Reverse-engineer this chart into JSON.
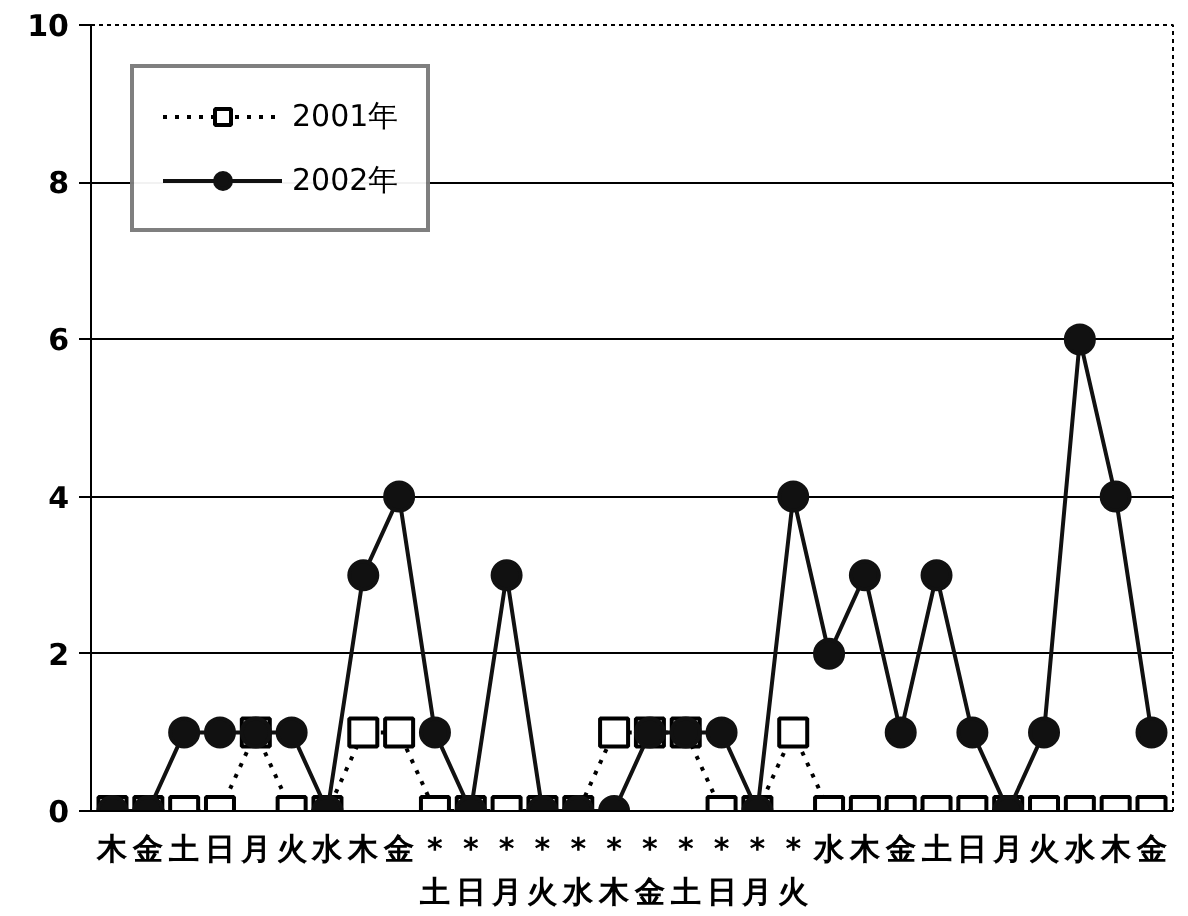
{
  "chart_data": {
    "type": "line",
    "categories": [
      "木",
      "金",
      "土",
      "日",
      "月",
      "火",
      "水",
      "木",
      "金",
      "*\n土",
      "*\n日",
      "*\n月",
      "*\n火",
      "*\n水",
      "*\n木",
      "*\n金",
      "*\n土",
      "*\n日",
      "*\n月",
      "*\n火",
      "水",
      "木",
      "金",
      "土",
      "日",
      "月",
      "火",
      "水",
      "木",
      "金"
    ],
    "series": [
      {
        "name": "2001年",
        "color": "#000000",
        "marker": "square",
        "line_style": "dotted",
        "values": [
          0,
          0,
          0,
          0,
          1,
          0,
          0,
          1,
          1,
          0,
          0,
          0,
          0,
          0,
          1,
          1,
          1,
          0,
          0,
          1,
          0,
          0,
          0,
          0,
          0,
          0,
          0,
          0,
          0,
          0
        ]
      },
      {
        "name": "2002年",
        "color": "#111111",
        "marker": "circle",
        "line_style": "solid",
        "values": [
          0,
          0,
          1,
          1,
          1,
          1,
          0,
          3,
          4,
          1,
          0,
          3,
          0,
          0,
          0,
          1,
          1,
          1,
          0,
          4,
          2,
          3,
          1,
          3,
          1,
          0,
          1,
          6,
          4,
          1
        ]
      }
    ],
    "ylim": [
      0,
      10
    ],
    "yticks": [
      0,
      2,
      4,
      6,
      8,
      10
    ],
    "grid": "y",
    "legend": "top left"
  }
}
